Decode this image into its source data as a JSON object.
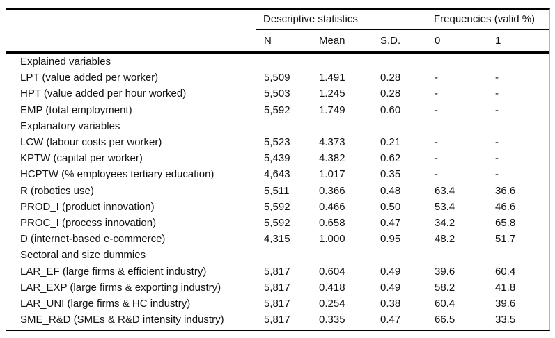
{
  "table": {
    "group_headers": [
      {
        "label": "Descriptive statistics"
      },
      {
        "label": "Frequencies (valid %)"
      }
    ],
    "column_headers": [
      "N",
      "Mean",
      "S.D.",
      "0",
      "1"
    ],
    "rows": [
      {
        "type": "section",
        "label": "Explained variables"
      },
      {
        "type": "data",
        "label": "LPT (value added per worker)",
        "n": "5,509",
        "mean": "1.491",
        "sd": "0.28",
        "f0": "-",
        "f1": "-"
      },
      {
        "type": "data",
        "label": "HPT (value added per hour worked)",
        "n": "5,503",
        "mean": "1.245",
        "sd": "0.28",
        "f0": "-",
        "f1": "-"
      },
      {
        "type": "data",
        "label": "EMP (total employment)",
        "n": "5,592",
        "mean": "1.749",
        "sd": "0.60",
        "f0": "-",
        "f1": "-"
      },
      {
        "type": "section",
        "label": "Explanatory variables"
      },
      {
        "type": "data",
        "label": "LCW (labour costs per worker)",
        "n": "5,523",
        "mean": "4.373",
        "sd": "0.21",
        "f0": "-",
        "f1": "-"
      },
      {
        "type": "data",
        "label": "KPTW (capital per worker)",
        "n": "5,439",
        "mean": "4.382",
        "sd": "0.62",
        "f0": "-",
        "f1": "-"
      },
      {
        "type": "data",
        "label": "HCPTW (% employees tertiary education)",
        "n": "4,643",
        "mean": "1.017",
        "sd": "0.35",
        "f0": "-",
        "f1": "-"
      },
      {
        "type": "data",
        "label": "R (robotics use)",
        "n": "5,511",
        "mean": "0.366",
        "sd": "0.48",
        "f0": "63.4",
        "f1": "36.6"
      },
      {
        "type": "data",
        "label": "PROD_I (product innovation)",
        "n": "5,592",
        "mean": "0.466",
        "sd": "0.50",
        "f0": "53.4",
        "f1": "46.6"
      },
      {
        "type": "data",
        "label": "PROC_I (process innovation)",
        "n": "5,592",
        "mean": "0.658",
        "sd": "0.47",
        "f0": "34.2",
        "f1": "65.8"
      },
      {
        "type": "data",
        "label": "D (internet-based e-commerce)",
        "n": "4,315",
        "mean": "1.000",
        "sd": "0.95",
        "f0": "48.2",
        "f1": "51.7"
      },
      {
        "type": "section",
        "label": "Sectoral and size dummies"
      },
      {
        "type": "data",
        "label": "LAR_EF (large firms & efficient industry)",
        "n": "5,817",
        "mean": "0.604",
        "sd": "0.49",
        "f0": "39.6",
        "f1": "60.4"
      },
      {
        "type": "data",
        "label": "LAR_EXP (large firms & exporting industry)",
        "n": "5,817",
        "mean": "0.418",
        "sd": "0.49",
        "f0": "58.2",
        "f1": "41.8"
      },
      {
        "type": "data",
        "label": "LAR_UNI (large firms & HC industry)",
        "n": "5,817",
        "mean": "0.254",
        "sd": "0.38",
        "f0": "60.4",
        "f1": "39.6"
      },
      {
        "type": "data",
        "label": "SME_R&D (SMEs & R&D intensity industry)",
        "n": "5,817",
        "mean": "0.335",
        "sd": "0.47",
        "f0": "66.5",
        "f1": "33.5"
      }
    ],
    "colors": {
      "rule": "#000000",
      "side_border": "#b5b5b5",
      "text": "#111111",
      "background": "#ffffff"
    }
  }
}
